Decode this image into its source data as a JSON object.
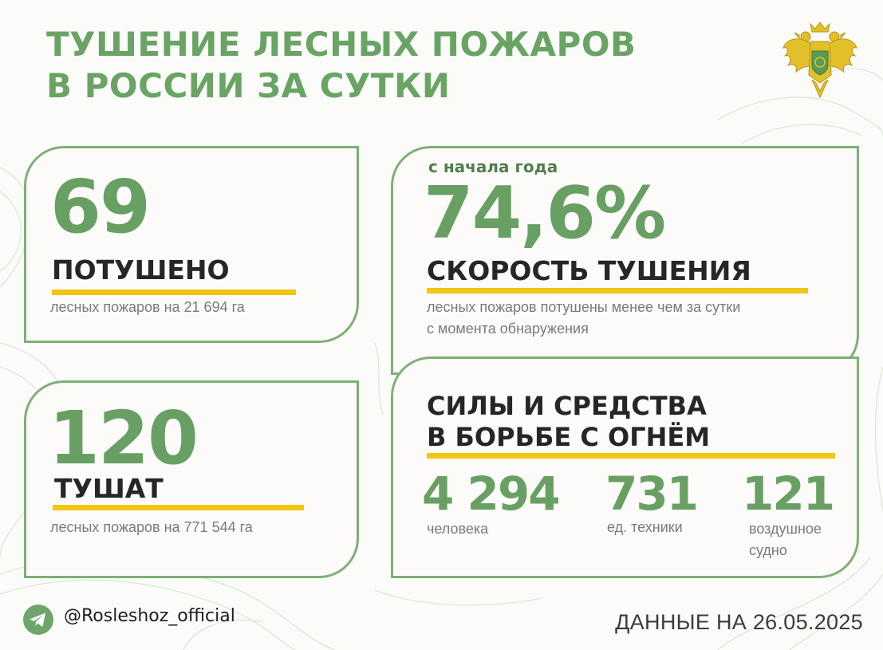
{
  "title": {
    "line1": "ТУШЕНИЕ ЛЕСНЫХ ПОЖАРОВ",
    "line2": "В РОССИИ ЗА СУТКИ"
  },
  "extinguished": {
    "value": "69",
    "label": "ПОТУШЕНО",
    "note": "лесных пожаров на 21 694 га"
  },
  "ongoing": {
    "value": "120",
    "label": "ТУШАТ",
    "note": "лесных пожаров на 771 544 га"
  },
  "speed": {
    "caption": "с начала года",
    "value": "74,6%",
    "label": "СКОРОСТЬ ТУШЕНИЯ",
    "note_line1": "лесных пожаров потушены менее чем за сутки",
    "note_line2": "с момента обнаружения"
  },
  "forces": {
    "title_line1": "СИЛЫ И СРЕДСТВА",
    "title_line2": "В БОРЬБЕ С ОГНЁМ",
    "items": [
      {
        "value": "4 294",
        "label_line1": "человека",
        "label_line2": ""
      },
      {
        "value": "731",
        "label_line1": "ед. техники",
        "label_line2": ""
      },
      {
        "value": "121",
        "label_line1": "воздушное",
        "label_line2": "судно"
      }
    ]
  },
  "footer": {
    "social_icon": "telegram-icon",
    "handle": "@Rosleshoz_official",
    "date": "ДАННЫЕ НА 26.05.2025"
  },
  "colors": {
    "green": "#69a465",
    "accent_yellow": "#f1c712",
    "border_green": "#7eaf78",
    "heading_dark": "#262626"
  },
  "emblem_icon": "double-headed-eagle-emblem"
}
